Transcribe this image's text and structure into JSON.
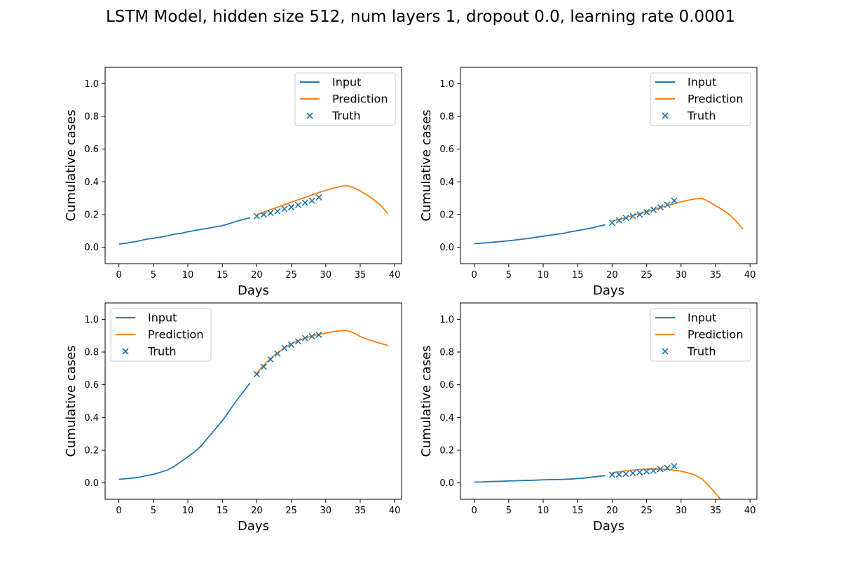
{
  "figure": {
    "title": "LSTM Model, hidden size 512, num layers 1, dropout 0.0, learning rate 0.0001"
  },
  "colors": {
    "input": "#1f77b4",
    "prediction": "#ff7f0e",
    "truth": "#1f77b4"
  },
  "chart_data": [
    {
      "type": "line",
      "xlabel": "Days",
      "ylabel": "Cumulative cases",
      "xlim": [
        -2,
        41
      ],
      "ylim": [
        -0.1,
        1.1
      ],
      "xticks": [
        "0",
        "5",
        "10",
        "15",
        "20",
        "25",
        "30",
        "35",
        "40"
      ],
      "yticks": [
        "0.0",
        "0.2",
        "0.4",
        "0.6",
        "0.8",
        "1.0"
      ],
      "legend_position": "upper-right",
      "legend": [
        "Input",
        "Prediction",
        "Truth"
      ],
      "series": [
        {
          "name": "Input",
          "kind": "line",
          "x": [
            0,
            1,
            2,
            3,
            4,
            5,
            6,
            7,
            8,
            9,
            10,
            11,
            12,
            13,
            14,
            15,
            16,
            17,
            18,
            19
          ],
          "y": [
            0.02,
            0.025,
            0.032,
            0.04,
            0.05,
            0.055,
            0.062,
            0.07,
            0.08,
            0.085,
            0.095,
            0.103,
            0.11,
            0.117,
            0.125,
            0.132,
            0.145,
            0.158,
            0.17,
            0.18
          ]
        },
        {
          "name": "Prediction",
          "kind": "line",
          "x": [
            20,
            21,
            22,
            23,
            24,
            25,
            26,
            27,
            28,
            29,
            30,
            31,
            32,
            33,
            34,
            35,
            36,
            37,
            38,
            39
          ],
          "y": [
            0.2,
            0.215,
            0.23,
            0.245,
            0.26,
            0.275,
            0.29,
            0.305,
            0.32,
            0.335,
            0.348,
            0.36,
            0.37,
            0.378,
            0.365,
            0.345,
            0.32,
            0.29,
            0.255,
            0.205
          ]
        },
        {
          "name": "Truth",
          "kind": "scatter",
          "x": [
            20,
            21,
            22,
            23,
            24,
            25,
            26,
            27,
            28,
            29
          ],
          "y": [
            0.19,
            0.2,
            0.21,
            0.22,
            0.235,
            0.245,
            0.258,
            0.272,
            0.285,
            0.305
          ]
        }
      ]
    },
    {
      "type": "line",
      "xlabel": "Days",
      "ylabel": "Cumulative cases",
      "xlim": [
        -2,
        41
      ],
      "ylim": [
        -0.1,
        1.1
      ],
      "xticks": [
        "0",
        "5",
        "10",
        "15",
        "20",
        "25",
        "30",
        "35",
        "40"
      ],
      "yticks": [
        "0.0",
        "0.2",
        "0.4",
        "0.6",
        "0.8",
        "1.0"
      ],
      "legend_position": "upper-right",
      "legend": [
        "Input",
        "Prediction",
        "Truth"
      ],
      "series": [
        {
          "name": "Input",
          "kind": "line",
          "x": [
            0,
            1,
            2,
            3,
            4,
            5,
            6,
            7,
            8,
            9,
            10,
            11,
            12,
            13,
            14,
            15,
            16,
            17,
            18,
            19
          ],
          "y": [
            0.022,
            0.025,
            0.028,
            0.032,
            0.036,
            0.04,
            0.045,
            0.05,
            0.055,
            0.062,
            0.068,
            0.074,
            0.08,
            0.086,
            0.095,
            0.102,
            0.11,
            0.118,
            0.128,
            0.138
          ]
        },
        {
          "name": "Prediction",
          "kind": "line",
          "x": [
            20,
            21,
            22,
            23,
            24,
            25,
            26,
            27,
            28,
            29,
            30,
            31,
            32,
            33,
            34,
            35,
            36,
            37,
            38,
            39
          ],
          "y": [
            0.16,
            0.17,
            0.182,
            0.194,
            0.206,
            0.218,
            0.23,
            0.242,
            0.255,
            0.267,
            0.278,
            0.288,
            0.296,
            0.3,
            0.28,
            0.255,
            0.23,
            0.2,
            0.16,
            0.11
          ]
        },
        {
          "name": "Truth",
          "kind": "scatter",
          "x": [
            20,
            21,
            22,
            23,
            24,
            25,
            26,
            27,
            28,
            29
          ],
          "y": [
            0.15,
            0.165,
            0.18,
            0.19,
            0.2,
            0.215,
            0.23,
            0.245,
            0.26,
            0.285
          ]
        }
      ]
    },
    {
      "type": "line",
      "xlabel": "Days",
      "ylabel": "Cumulative cases",
      "xlim": [
        -2,
        41
      ],
      "ylim": [
        -0.1,
        1.1
      ],
      "xticks": [
        "0",
        "5",
        "10",
        "15",
        "20",
        "25",
        "30",
        "35",
        "40"
      ],
      "yticks": [
        "0.0",
        "0.2",
        "0.4",
        "0.6",
        "0.8",
        "1.0"
      ],
      "legend_position": "upper-left",
      "legend": [
        "Input",
        "Prediction",
        "Truth"
      ],
      "series": [
        {
          "name": "Input",
          "kind": "line",
          "x": [
            0,
            1,
            2,
            3,
            4,
            5,
            6,
            7,
            8,
            9,
            10,
            11,
            12,
            13,
            14,
            15,
            16,
            17,
            18,
            19
          ],
          "y": [
            0.022,
            0.026,
            0.03,
            0.035,
            0.045,
            0.052,
            0.065,
            0.078,
            0.1,
            0.13,
            0.16,
            0.19,
            0.23,
            0.28,
            0.33,
            0.38,
            0.44,
            0.5,
            0.555,
            0.61
          ]
        },
        {
          "name": "Prediction",
          "kind": "line",
          "x": [
            20,
            21,
            22,
            23,
            24,
            25,
            26,
            27,
            28,
            29,
            30,
            31,
            32,
            33,
            34,
            35,
            36,
            37,
            38,
            39
          ],
          "y": [
            0.67,
            0.72,
            0.76,
            0.795,
            0.825,
            0.85,
            0.87,
            0.885,
            0.898,
            0.908,
            0.916,
            0.924,
            0.93,
            0.932,
            0.918,
            0.895,
            0.878,
            0.865,
            0.852,
            0.84
          ]
        },
        {
          "name": "Truth",
          "kind": "scatter",
          "x": [
            20,
            21,
            22,
            23,
            24,
            25,
            26,
            27,
            28,
            29
          ],
          "y": [
            0.665,
            0.71,
            0.755,
            0.79,
            0.825,
            0.845,
            0.865,
            0.885,
            0.895,
            0.905
          ]
        }
      ]
    },
    {
      "type": "line",
      "xlabel": "Days",
      "ylabel": "Cumulative cases",
      "xlim": [
        -2,
        41
      ],
      "ylim": [
        -0.1,
        1.1
      ],
      "xticks": [
        "0",
        "5",
        "10",
        "15",
        "20",
        "25",
        "30",
        "35",
        "40"
      ],
      "yticks": [
        "0.0",
        "0.2",
        "0.4",
        "0.6",
        "0.8",
        "1.0"
      ],
      "legend_position": "upper-right",
      "legend": [
        "Input",
        "Prediction",
        "Truth"
      ],
      "series": [
        {
          "name": "Input",
          "kind": "line",
          "x": [
            0,
            1,
            2,
            3,
            4,
            5,
            6,
            7,
            8,
            9,
            10,
            11,
            12,
            13,
            14,
            15,
            16,
            17,
            18,
            19
          ],
          "y": [
            0.005,
            0.006,
            0.008,
            0.009,
            0.01,
            0.012,
            0.013,
            0.015,
            0.016,
            0.017,
            0.019,
            0.02,
            0.021,
            0.022,
            0.024,
            0.027,
            0.03,
            0.035,
            0.04,
            0.045
          ]
        },
        {
          "name": "Prediction",
          "kind": "line",
          "x": [
            20,
            21,
            22,
            23,
            24,
            25,
            26,
            27,
            28,
            29,
            30,
            31,
            32,
            33,
            34,
            35,
            36
          ],
          "y": [
            0.062,
            0.068,
            0.074,
            0.079,
            0.082,
            0.084,
            0.085,
            0.084,
            0.082,
            0.078,
            0.072,
            0.062,
            0.048,
            0.025,
            -0.015,
            -0.065,
            -0.115
          ]
        },
        {
          "name": "Truth",
          "kind": "scatter",
          "x": [
            20,
            21,
            22,
            23,
            24,
            25,
            26,
            27,
            28,
            29
          ],
          "y": [
            0.05,
            0.052,
            0.055,
            0.06,
            0.065,
            0.07,
            0.075,
            0.085,
            0.092,
            0.102
          ]
        }
      ]
    }
  ]
}
